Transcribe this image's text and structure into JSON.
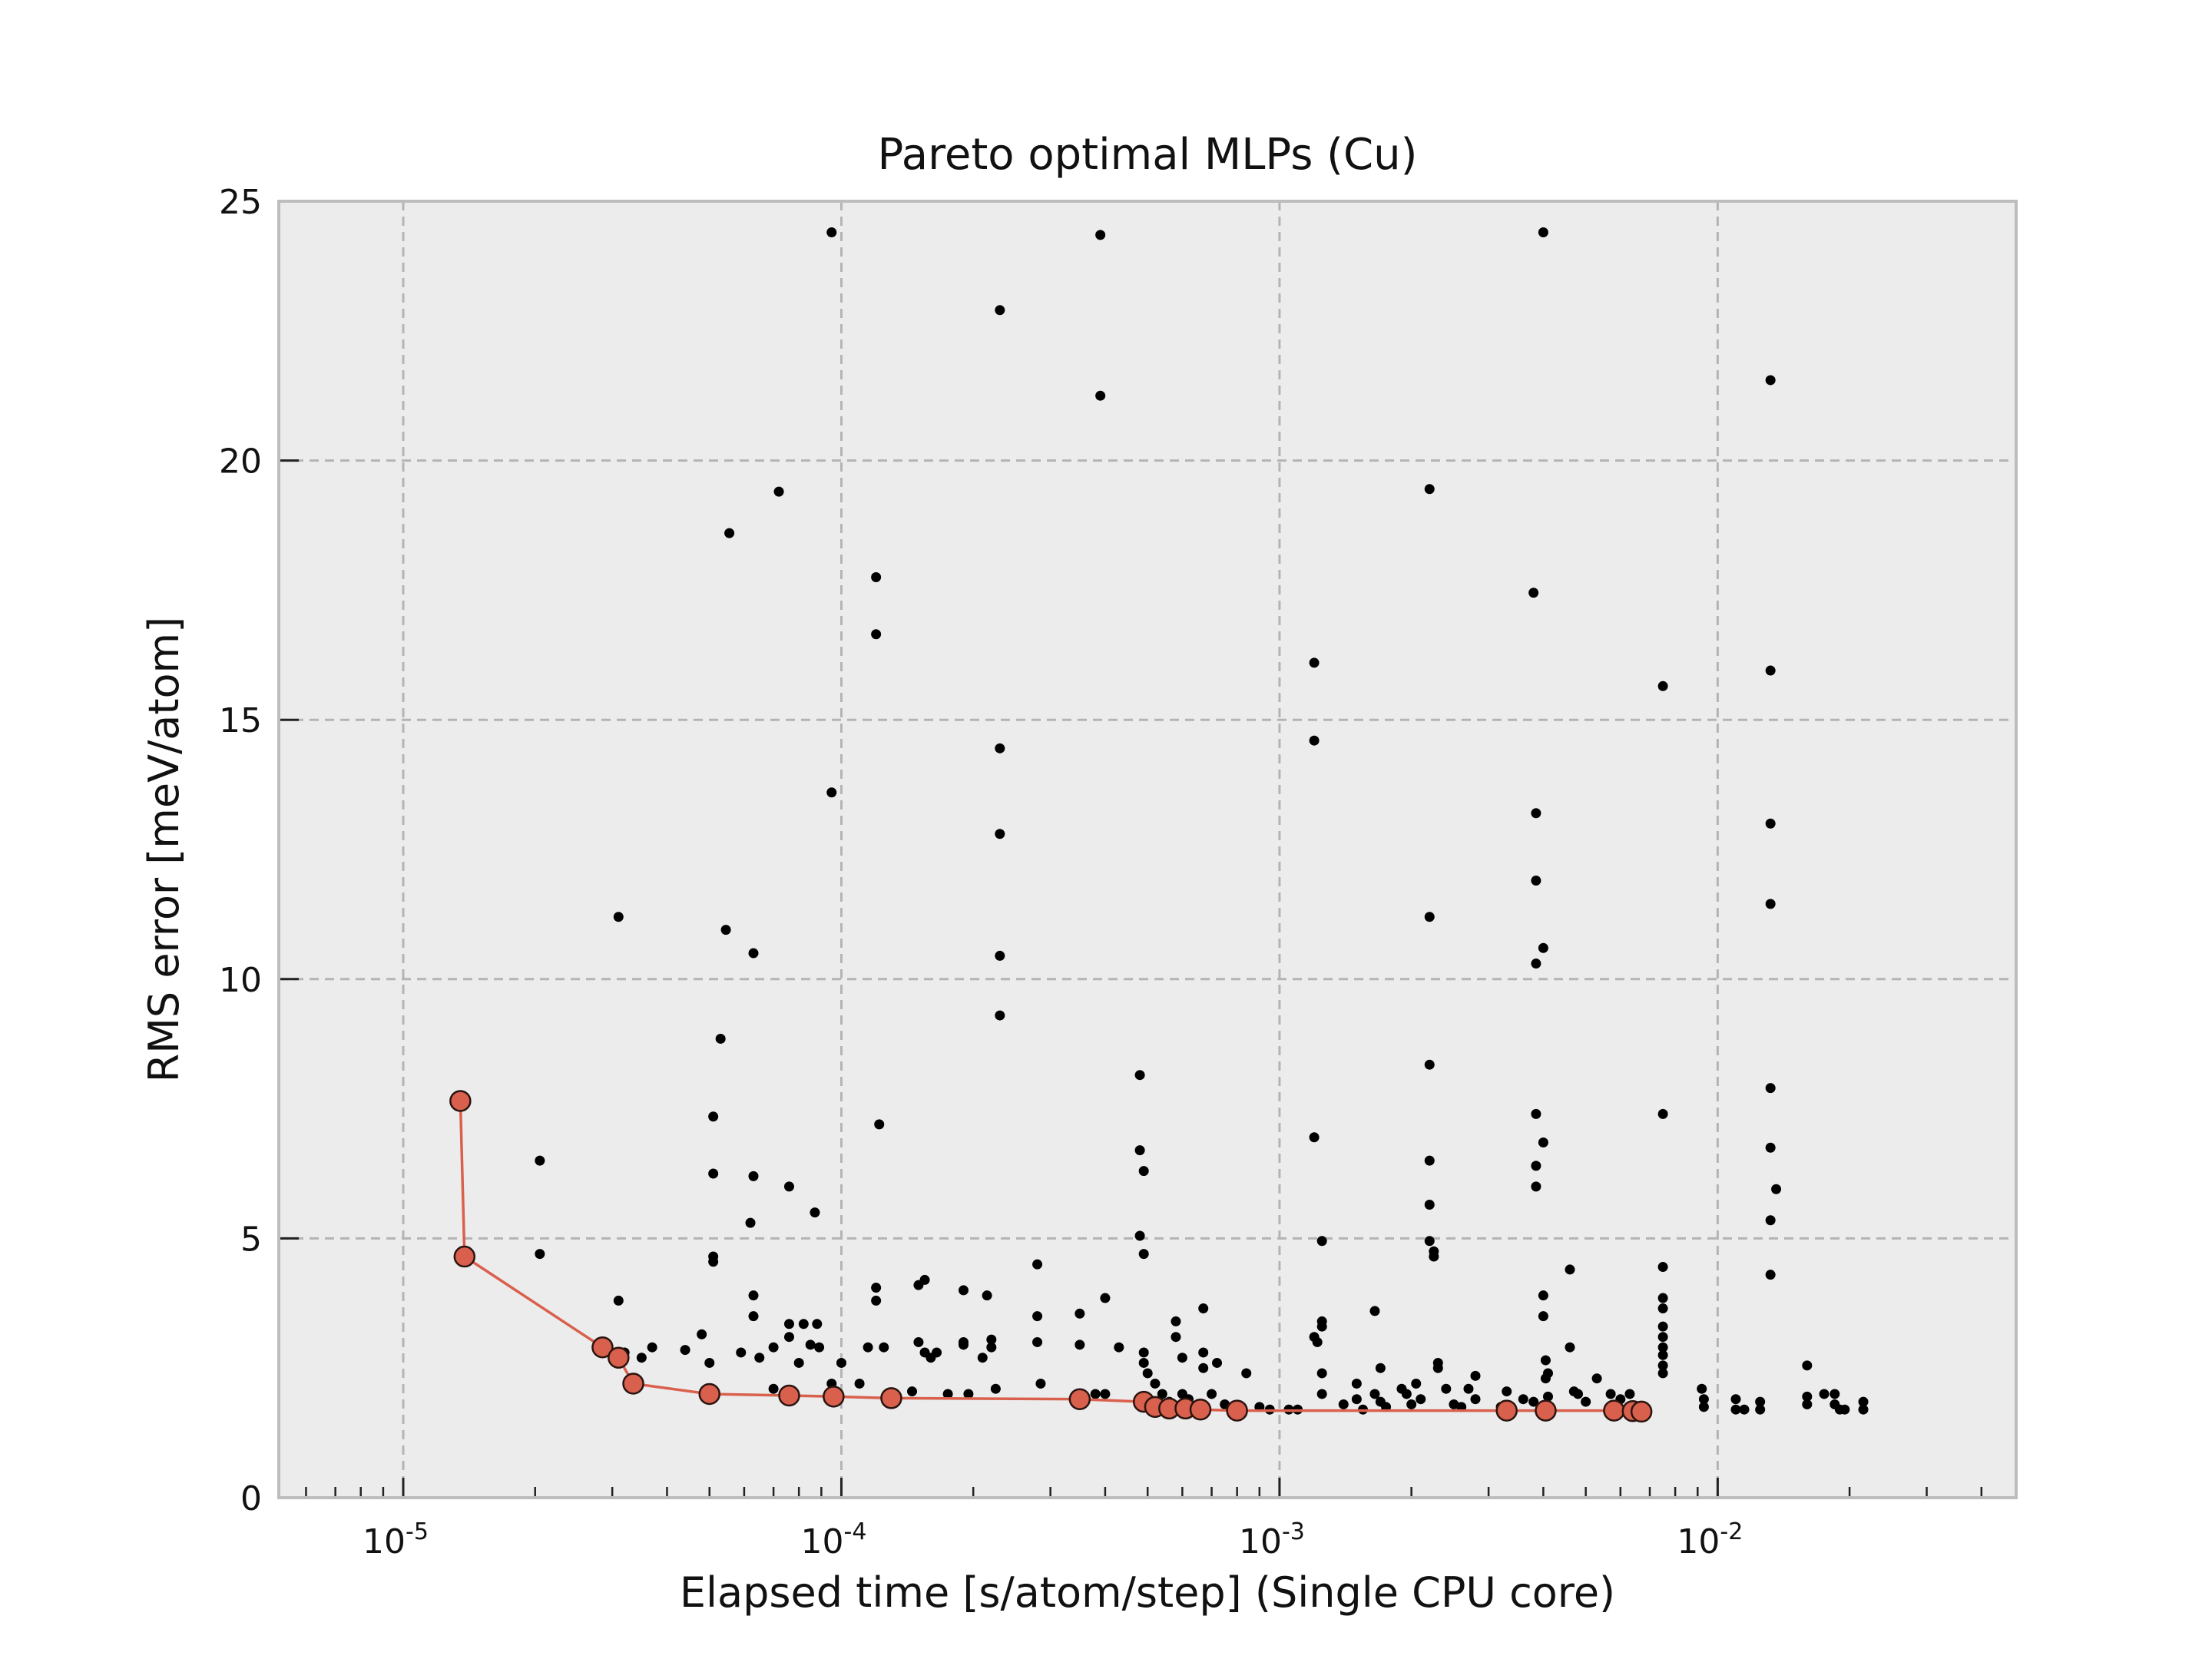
{
  "chart_data": {
    "type": "scatter",
    "title": "Pareto optimal MLPs (Cu)",
    "xlabel": "Elapsed time [s/atom/step] (Single CPU core)",
    "ylabel": "RMS error [meV/atom]",
    "xscale": "log",
    "xlim": [
      5.2e-06,
      0.048
    ],
    "ylim": [
      0,
      25
    ],
    "x_ticks": [
      {
        "value": 1e-05,
        "base": "10",
        "exp": "-5"
      },
      {
        "value": 0.0001,
        "base": "10",
        "exp": "-4"
      },
      {
        "value": 0.001,
        "base": "10",
        "exp": "-3"
      },
      {
        "value": 0.01,
        "base": "10",
        "exp": "-2"
      }
    ],
    "y_ticks": [
      {
        "value": 0,
        "label": "0"
      },
      {
        "value": 5,
        "label": "5"
      },
      {
        "value": 10,
        "label": "10"
      },
      {
        "value": 15,
        "label": "15"
      },
      {
        "value": 20,
        "label": "20"
      },
      {
        "value": 25,
        "label": "25"
      }
    ],
    "grid": true,
    "colors": {
      "background": "#ececec",
      "grid": "#b4b4b4",
      "frame": "#bdbdbd",
      "all_points": "#000000",
      "pareto": "#d9604c",
      "pareto_edge": "#2a1410"
    },
    "series": [
      {
        "name": "",
        "style": "points",
        "points": [
          [
            2.05e-05,
            6.5
          ],
          [
            2.05e-05,
            4.7
          ],
          [
            3.1e-05,
            11.2
          ],
          [
            3.1e-05,
            3.8
          ],
          [
            3.2e-05,
            2.8
          ],
          [
            3.5e-05,
            2.7
          ],
          [
            3.7e-05,
            2.9
          ],
          [
            4.4e-05,
            2.85
          ],
          [
            4.8e-05,
            3.15
          ],
          [
            5e-05,
            2.6
          ],
          [
            5.1e-05,
            7.35
          ],
          [
            5.1e-05,
            6.25
          ],
          [
            5.1e-05,
            4.65
          ],
          [
            5.1e-05,
            4.55
          ],
          [
            5.3e-05,
            8.85
          ],
          [
            5.45e-05,
            10.95
          ],
          [
            5.55e-05,
            18.6
          ],
          [
            5.9e-05,
            2.8
          ],
          [
            6.2e-05,
            5.3
          ],
          [
            6.3e-05,
            10.5
          ],
          [
            6.3e-05,
            6.2
          ],
          [
            6.3e-05,
            3.9
          ],
          [
            6.3e-05,
            3.5
          ],
          [
            6.5e-05,
            2.7
          ],
          [
            7e-05,
            2.1
          ],
          [
            7e-05,
            2.9
          ],
          [
            7.2e-05,
            19.4
          ],
          [
            7.6e-05,
            6.0
          ],
          [
            7.6e-05,
            3.35
          ],
          [
            7.6e-05,
            3.1
          ],
          [
            8e-05,
            2.6
          ],
          [
            8.2e-05,
            3.35
          ],
          [
            8.5e-05,
            2.95
          ],
          [
            8.7e-05,
            5.5
          ],
          [
            8.8e-05,
            3.35
          ],
          [
            8.9e-05,
            2.9
          ],
          [
            9.5e-05,
            24.4
          ],
          [
            9.5e-05,
            13.6
          ],
          [
            9.5e-05,
            2.2
          ],
          [
            0.0001,
            2.6
          ],
          [
            0.00011,
            2.2
          ],
          [
            0.000115,
            2.9
          ],
          [
            0.00012,
            17.75
          ],
          [
            0.00012,
            16.65
          ],
          [
            0.000122,
            7.2
          ],
          [
            0.00012,
            4.05
          ],
          [
            0.00012,
            3.8
          ],
          [
            0.000125,
            2.9
          ],
          [
            0.000145,
            2.05
          ],
          [
            0.00015,
            3.0
          ],
          [
            0.00015,
            4.1
          ],
          [
            0.000155,
            4.2
          ],
          [
            0.000155,
            2.8
          ],
          [
            0.00016,
            2.7
          ],
          [
            0.000165,
            2.8
          ],
          [
            0.000175,
            2.0
          ],
          [
            0.00019,
            4.0
          ],
          [
            0.00019,
            3.0
          ],
          [
            0.00019,
            2.95
          ],
          [
            0.000195,
            2.0
          ],
          [
            0.00021,
            2.7
          ],
          [
            0.000215,
            3.9
          ],
          [
            0.00022,
            3.05
          ],
          [
            0.00022,
            2.9
          ],
          [
            0.000225,
            2.1
          ],
          [
            0.00023,
            22.9
          ],
          [
            0.00023,
            14.45
          ],
          [
            0.00023,
            12.8
          ],
          [
            0.00023,
            10.45
          ],
          [
            0.00023,
            9.3
          ],
          [
            0.00028,
            4.5
          ],
          [
            0.00028,
            3.5
          ],
          [
            0.00028,
            3.0
          ],
          [
            0.000285,
            2.2
          ],
          [
            0.00035,
            3.55
          ],
          [
            0.00035,
            2.95
          ],
          [
            0.00038,
            2.0
          ],
          [
            0.00039,
            24.35
          ],
          [
            0.00039,
            21.25
          ],
          [
            0.0004,
            3.85
          ],
          [
            0.0004,
            2.0
          ],
          [
            0.00043,
            2.9
          ],
          [
            0.00048,
            8.15
          ],
          [
            0.00048,
            6.7
          ],
          [
            0.00049,
            6.3
          ],
          [
            0.00048,
            5.05
          ],
          [
            0.00049,
            4.7
          ],
          [
            0.00049,
            2.8
          ],
          [
            0.00049,
            2.6
          ],
          [
            0.0005,
            2.4
          ],
          [
            0.00052,
            2.2
          ],
          [
            0.00054,
            2.0
          ],
          [
            0.00056,
            1.85
          ],
          [
            0.00058,
            3.4
          ],
          [
            0.00058,
            3.1
          ],
          [
            0.0006,
            2.7
          ],
          [
            0.0006,
            2.0
          ],
          [
            0.00062,
            1.9
          ],
          [
            0.00065,
            1.75
          ],
          [
            0.00067,
            3.65
          ],
          [
            0.00067,
            2.8
          ],
          [
            0.00067,
            2.5
          ],
          [
            0.0007,
            2.0
          ],
          [
            0.00072,
            2.6
          ],
          [
            0.00075,
            1.8
          ],
          [
            0.00078,
            1.7
          ],
          [
            0.00082,
            1.75
          ],
          [
            0.00084,
            2.4
          ],
          [
            0.0009,
            1.75
          ],
          [
            0.00095,
            1.7
          ],
          [
            0.00105,
            1.7
          ],
          [
            0.0011,
            1.7
          ],
          [
            0.0012,
            16.1
          ],
          [
            0.0012,
            14.6
          ],
          [
            0.0012,
            6.95
          ],
          [
            0.00125,
            4.95
          ],
          [
            0.00125,
            3.4
          ],
          [
            0.00125,
            3.3
          ],
          [
            0.0012,
            3.1
          ],
          [
            0.00122,
            3.0
          ],
          [
            0.00125,
            2.4
          ],
          [
            0.00125,
            2.0
          ],
          [
            0.0014,
            1.8
          ],
          [
            0.0015,
            2.2
          ],
          [
            0.0015,
            1.9
          ],
          [
            0.00155,
            1.7
          ],
          [
            0.00165,
            3.6
          ],
          [
            0.0017,
            2.5
          ],
          [
            0.00165,
            2.0
          ],
          [
            0.0017,
            1.85
          ],
          [
            0.00175,
            1.75
          ],
          [
            0.0019,
            2.1
          ],
          [
            0.00195,
            2.0
          ],
          [
            0.002,
            1.8
          ],
          [
            0.00205,
            2.2
          ],
          [
            0.0021,
            1.9
          ],
          [
            0.0022,
            19.45
          ],
          [
            0.0022,
            11.2
          ],
          [
            0.0022,
            8.35
          ],
          [
            0.0022,
            6.5
          ],
          [
            0.0022,
            5.65
          ],
          [
            0.0022,
            4.95
          ],
          [
            0.00225,
            4.75
          ],
          [
            0.00225,
            4.65
          ],
          [
            0.0023,
            2.6
          ],
          [
            0.0023,
            2.5
          ],
          [
            0.0024,
            2.1
          ],
          [
            0.0025,
            1.8
          ],
          [
            0.0026,
            1.75
          ],
          [
            0.0027,
            2.1
          ],
          [
            0.0028,
            2.35
          ],
          [
            0.0028,
            1.9
          ],
          [
            0.0032,
            1.75
          ],
          [
            0.0033,
            2.05
          ],
          [
            0.0036,
            1.9
          ],
          [
            0.0038,
            1.85
          ],
          [
            0.0038,
            17.45
          ],
          [
            0.00385,
            13.2
          ],
          [
            0.00385,
            11.9
          ],
          [
            0.00385,
            10.3
          ],
          [
            0.00385,
            7.4
          ],
          [
            0.00385,
            6.4
          ],
          [
            0.00385,
            6.0
          ],
          [
            0.004,
            24.4
          ],
          [
            0.004,
            10.6
          ],
          [
            0.004,
            6.85
          ],
          [
            0.004,
            3.9
          ],
          [
            0.004,
            3.5
          ],
          [
            0.00405,
            2.65
          ],
          [
            0.0041,
            2.4
          ],
          [
            0.00405,
            2.3
          ],
          [
            0.0041,
            1.95
          ],
          [
            0.0046,
            4.4
          ],
          [
            0.0046,
            2.9
          ],
          [
            0.0047,
            2.05
          ],
          [
            0.0048,
            2.0
          ],
          [
            0.005,
            1.85
          ],
          [
            0.0053,
            2.3
          ],
          [
            0.0057,
            2.0
          ],
          [
            0.006,
            1.9
          ],
          [
            0.0063,
            2.0
          ],
          [
            0.0075,
            15.65
          ],
          [
            0.0075,
            7.4
          ],
          [
            0.0075,
            4.45
          ],
          [
            0.0075,
            3.85
          ],
          [
            0.0075,
            3.65
          ],
          [
            0.0075,
            3.3
          ],
          [
            0.0075,
            3.1
          ],
          [
            0.0075,
            2.9
          ],
          [
            0.0075,
            2.75
          ],
          [
            0.0075,
            2.55
          ],
          [
            0.0075,
            2.4
          ],
          [
            0.0092,
            2.1
          ],
          [
            0.0093,
            1.9
          ],
          [
            0.0093,
            1.75
          ],
          [
            0.011,
            1.9
          ],
          [
            0.011,
            1.7
          ],
          [
            0.0115,
            1.7
          ],
          [
            0.0125,
            1.85
          ],
          [
            0.0125,
            1.7
          ],
          [
            0.0132,
            21.55
          ],
          [
            0.0132,
            15.95
          ],
          [
            0.0132,
            13.0
          ],
          [
            0.0132,
            11.45
          ],
          [
            0.0132,
            7.9
          ],
          [
            0.0132,
            6.75
          ],
          [
            0.0136,
            5.95
          ],
          [
            0.0132,
            5.35
          ],
          [
            0.0132,
            4.3
          ],
          [
            0.016,
            2.55
          ],
          [
            0.016,
            1.95
          ],
          [
            0.016,
            1.8
          ],
          [
            0.0175,
            2.0
          ],
          [
            0.0185,
            2.0
          ],
          [
            0.0185,
            1.8
          ],
          [
            0.019,
            1.7
          ],
          [
            0.0195,
            1.7
          ],
          [
            0.0215,
            1.85
          ],
          [
            0.0215,
            1.7
          ]
        ]
      },
      {
        "name": "",
        "style": "line-markers",
        "points": [
          [
            1.35e-05,
            7.65
          ],
          [
            1.38e-05,
            4.65
          ],
          [
            2.85e-05,
            2.9
          ],
          [
            3.1e-05,
            2.7
          ],
          [
            3.35e-05,
            2.2
          ],
          [
            5e-05,
            2.0
          ],
          [
            7.6e-05,
            1.97
          ],
          [
            9.6e-05,
            1.95
          ],
          [
            0.00013,
            1.92
          ],
          [
            0.00035,
            1.9
          ],
          [
            0.00049,
            1.85
          ],
          [
            0.00052,
            1.75
          ],
          [
            0.00056,
            1.72
          ],
          [
            0.00061,
            1.72
          ],
          [
            0.00066,
            1.7
          ],
          [
            0.0008,
            1.68
          ],
          [
            0.0033,
            1.68
          ],
          [
            0.00405,
            1.68
          ],
          [
            0.0058,
            1.68
          ],
          [
            0.0064,
            1.67
          ],
          [
            0.0067,
            1.66
          ]
        ]
      }
    ]
  }
}
